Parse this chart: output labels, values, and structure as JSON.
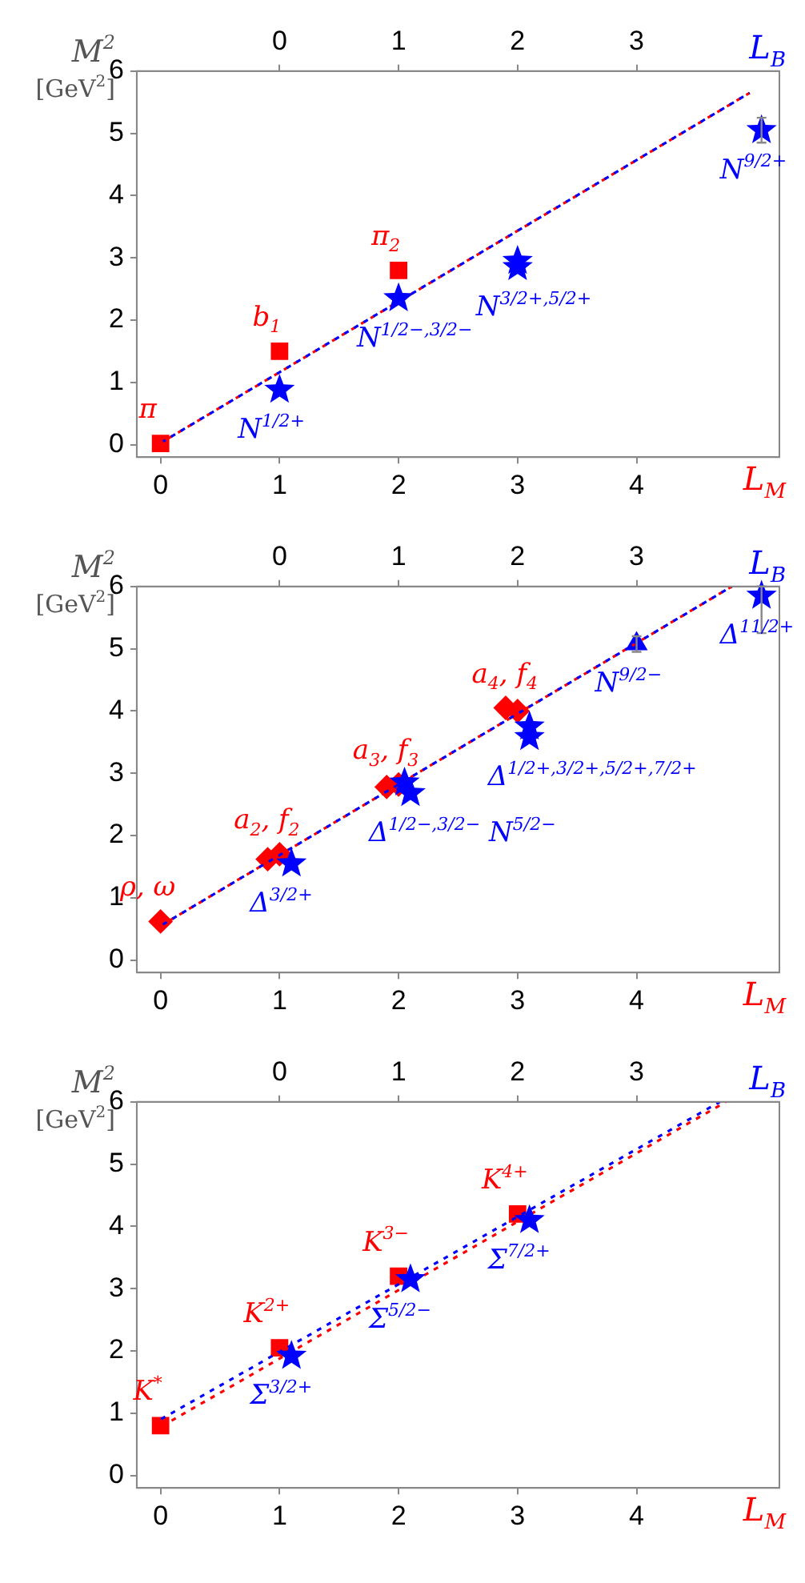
{
  "chart_data": [
    {
      "type": "scatter",
      "ylabel": "M$^{2}$ [GeV$^{2}$]",
      "xlabel": "L$_{M}$",
      "x2label": "L$_{B}$",
      "xlim": [
        -0.2,
        5.2
      ],
      "xticks": [
        0,
        1,
        2,
        3,
        4
      ],
      "x2lim": [
        -1.2,
        4.2
      ],
      "x2ticks": [
        0,
        1,
        2,
        3
      ],
      "ylim": [
        -0.2,
        6
      ],
      "yticks": [
        0,
        1,
        2,
        3,
        4,
        5,
        6
      ],
      "series": [
        {
          "type": "scatter",
          "marker": "square",
          "color": "#ff0000",
          "x": [
            0,
            1,
            2
          ],
          "values": [
            0.02,
            1.5,
            2.8
          ]
        },
        {
          "type": "scatter",
          "marker": "star",
          "color": "#0000ff",
          "x": [
            1,
            2,
            3,
            3,
            5.05
          ],
          "values": [
            0.88,
            2.35,
            2.85,
            2.95,
            5.05
          ],
          "errors": [
            null,
            null,
            null,
            null,
            0.2
          ]
        },
        {
          "type": "line",
          "line_style": "dashed",
          "color": "#ff0000",
          "x": [
            0.02,
            4.95
          ],
          "values": [
            0.05,
            5.65
          ]
        },
        {
          "type": "line",
          "line_style": "dashed",
          "color": "#0000ff",
          "x": [
            0.02,
            4.95
          ],
          "values": [
            0.05,
            5.65
          ]
        }
      ],
      "annotations": [
        {
          "text": "π",
          "x": 0,
          "y": 0.02
        },
        {
          "text": "b$_{1}$",
          "x": 1,
          "y": 1.5
        },
        {
          "text": "π$_{2}$",
          "x": 2,
          "y": 2.8
        },
        {
          "text": "N$^{1/2+}$",
          "x": 1,
          "y": 0.88
        },
        {
          "text": "N$^{1/2−,3/2−}$",
          "x": 2,
          "y": 2.35
        },
        {
          "text": "N$^{3/2+,5/2+}$",
          "x": 3,
          "y": 2.85
        },
        {
          "text": "N$^{9/2+}$",
          "x": 5.05,
          "y": 5.05
        }
      ]
    },
    {
      "type": "scatter",
      "ylabel": "M$^{2}$ [GeV$^{2}$]",
      "xlabel": "L$_{M}$",
      "x2label": "L$_{B}$",
      "xlim": [
        -0.2,
        5.2
      ],
      "xticks": [
        0,
        1,
        2,
        3,
        4
      ],
      "x2lim": [
        -1.2,
        4.2
      ],
      "x2ticks": [
        0,
        1,
        2,
        3
      ],
      "ylim": [
        -0.2,
        6
      ],
      "yticks": [
        0,
        1,
        2,
        3,
        4,
        5,
        6
      ],
      "series": [
        {
          "type": "scatter",
          "marker": "diamond",
          "color": "#ff0000",
          "x": [
            0,
            0.9,
            1,
            1.9,
            2,
            2.9,
            3
          ],
          "values": [
            0.62,
            1.62,
            1.7,
            2.78,
            2.82,
            4.05,
            4
          ]
        },
        {
          "type": "scatter",
          "marker": "star",
          "color": "#0000ff",
          "x": [
            1.1,
            2.05,
            2.1,
            3.1,
            3.1,
            5.05
          ],
          "values": [
            1.55,
            2.85,
            2.68,
            3.75,
            3.58,
            5.85
          ],
          "errors": [
            null,
            null,
            null,
            null,
            null,
            [
              5.25,
              6
            ]
          ]
        },
        {
          "type": "scatter",
          "marker": "triangle",
          "color": "#0000ff",
          "x": [
            4
          ],
          "values": [
            5.08
          ],
          "errors": [
            [
              4.95,
              5.2
            ]
          ]
        },
        {
          "type": "line",
          "line_style": "dashed",
          "color": "#ff0000",
          "x": [
            0,
            4.8
          ],
          "values": [
            0.55,
            6
          ]
        },
        {
          "type": "line",
          "line_style": "dashed",
          "color": "#0000ff",
          "x": [
            0,
            4.8
          ],
          "values": [
            0.55,
            6
          ]
        }
      ],
      "annotations": [
        {
          "text": "ρ, ω",
          "x": 0,
          "y": 0.62
        },
        {
          "text": "a$_{2}$, f$_{2}$",
          "x": 1,
          "y": 1.7
        },
        {
          "text": "a$_{3}$, f$_{3}$",
          "x": 2,
          "y": 2.82
        },
        {
          "text": "a$_{4}$, f$_{4}$",
          "x": 3,
          "y": 4.05
        },
        {
          "text": "Δ$^{3/2+}$",
          "x": 1.1,
          "y": 1.55
        },
        {
          "text": "Δ$^{1/2−,3/2−}$ N$^{5/2−}$",
          "x": 2.1,
          "y": 2.68
        },
        {
          "text": "Δ$^{1/2+,3/2+,5/2+,7/2+}$",
          "x": 3.1,
          "y": 3.58
        },
        {
          "text": "N$^{9/2−}$",
          "x": 4,
          "y": 5.08
        },
        {
          "text": "Δ$^{11/2+}$",
          "x": 5.05,
          "y": 5.85
        }
      ]
    },
    {
      "type": "scatter",
      "ylabel": "M$^{2}$ [GeV$^{2}$]",
      "xlabel": "L$_{M}$",
      "x2label": "L$_{B}$",
      "xlim": [
        -0.2,
        5.2
      ],
      "xticks": [
        0,
        1,
        2,
        3,
        4
      ],
      "x2lim": [
        -1.2,
        4.2
      ],
      "x2ticks": [
        0,
        1,
        2,
        3
      ],
      "ylim": [
        -0.2,
        6
      ],
      "yticks": [
        0,
        1,
        2,
        3,
        4,
        5,
        6
      ],
      "series": [
        {
          "type": "scatter",
          "marker": "square",
          "color": "#ff0000",
          "x": [
            0,
            1,
            2,
            3
          ],
          "values": [
            0.8,
            2.05,
            3.2,
            4.2
          ]
        },
        {
          "type": "scatter",
          "marker": "star",
          "color": "#0000ff",
          "x": [
            1.1,
            2.1,
            3.1
          ],
          "values": [
            1.92,
            3.15,
            4.1
          ]
        },
        {
          "type": "line",
          "line_style": "dashed",
          "color": "#0000ff",
          "x": [
            0,
            4.7
          ],
          "values": [
            0.9,
            6
          ]
        },
        {
          "type": "line",
          "line_style": "dashed",
          "color": "#ff0000",
          "x": [
            0.02,
            4.75
          ],
          "values": [
            0.8,
            6
          ]
        }
      ],
      "annotations": [
        {
          "text": "K$^{*}$",
          "x": 0,
          "y": 0.8
        },
        {
          "text": "K$^{2+}$",
          "x": 1,
          "y": 2.05
        },
        {
          "text": "K$^{3−}$",
          "x": 2,
          "y": 3.2
        },
        {
          "text": "K$^{4+}$",
          "x": 3,
          "y": 4.2
        },
        {
          "text": "Σ$^{3/2+}$",
          "x": 1.1,
          "y": 1.92
        },
        {
          "text": "Σ$^{5/2−}$",
          "x": 2.1,
          "y": 3.15
        },
        {
          "text": "Σ$^{7/2+}$",
          "x": 3.1,
          "y": 4.1
        }
      ]
    }
  ]
}
